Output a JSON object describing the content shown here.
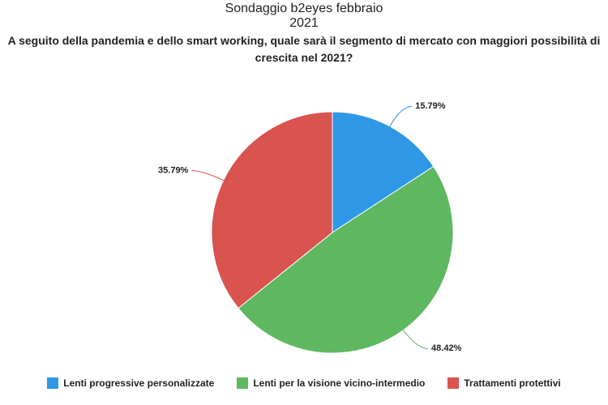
{
  "chart_data": {
    "type": "pie",
    "title": "Sondaggio b2eyes febbraio 2021",
    "subtitle": "A seguito della pandemia e dello smart working, quale sarà il segmento di mercato con maggiori possibilità di crescita nel 2021?",
    "categories": [
      "Lenti progressive personalizzate",
      "Lenti per la visione vicino-intermedio",
      "Trattamenti protettivi"
    ],
    "values": [
      15.79,
      48.42,
      35.79
    ],
    "value_labels": [
      "15.79%",
      "48.42%",
      "35.79%"
    ],
    "colors": [
      "#2e98e6",
      "#5db85f",
      "#d9534f"
    ],
    "legend": "bottom"
  }
}
